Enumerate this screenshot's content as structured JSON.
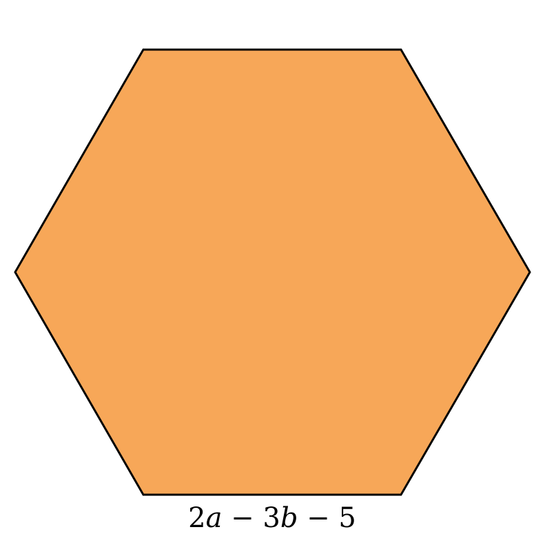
{
  "diagram": {
    "shape": "regular hexagon",
    "fill_color": "#F7A758",
    "stroke_color": "#000000",
    "side_label": {
      "coef_a": "2",
      "var_a": "a",
      "op1": " − ",
      "coef_b": "3",
      "var_b": "b",
      "op2": " − ",
      "constant": "5"
    }
  }
}
